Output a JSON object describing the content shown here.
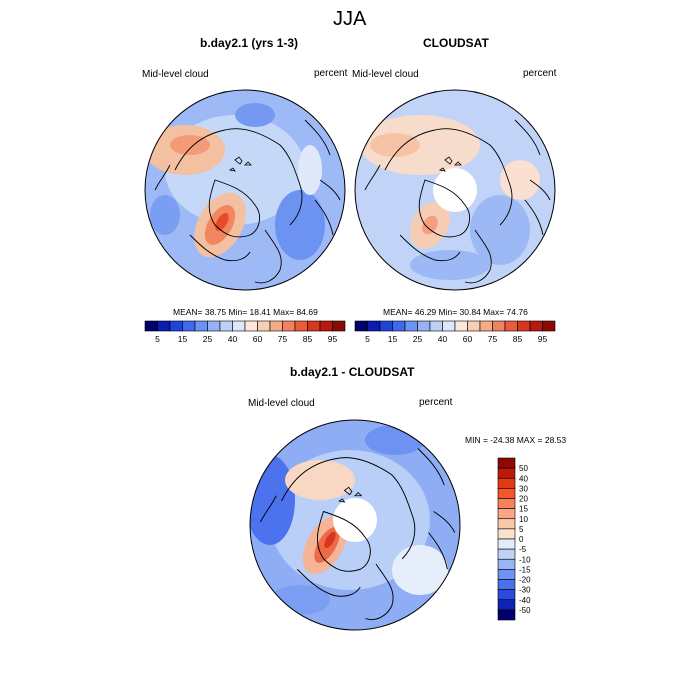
{
  "figure": {
    "season": "JJA"
  },
  "panel_left": {
    "title": "b.day2.1 (yrs 1-3)",
    "variable": "Mid-level cloud",
    "units": "percent",
    "stats": {
      "label": "MEAN=  38.75  Min=  18.41  Max=  84.69",
      "mean": 38.75,
      "min": 18.41,
      "max": 84.69
    }
  },
  "panel_right": {
    "title": "CLOUDSAT",
    "variable": "Mid-level cloud",
    "units": "percent",
    "stats": {
      "label": "MEAN=  46.29  Min=  30.84  Max=  74.76",
      "mean": 46.29,
      "min": 30.84,
      "max": 74.76
    }
  },
  "panel_diff": {
    "title": "b.day2.1 - CLOUDSAT",
    "variable": "Mid-level cloud",
    "units": "percent",
    "minmax": {
      "label": "MIN = -24.38 MAX =  28.53",
      "min": -24.38,
      "max": 28.53
    }
  },
  "colorbar_abs": {
    "tick_labels": [
      "5",
      "15",
      "25",
      "40",
      "60",
      "75",
      "85",
      "95"
    ],
    "colors": [
      "#02006b",
      "#0a1bb0",
      "#1f44d9",
      "#3d6bf0",
      "#6a93f3",
      "#94b2f5",
      "#bdd0f6",
      "#dce8f9",
      "#fbe6d8",
      "#f9cfb4",
      "#f6ab88",
      "#f28262",
      "#ea5a3c",
      "#d9361f",
      "#b81810",
      "#8a0b05"
    ]
  },
  "colorbar_diff": {
    "tick_labels": [
      "50",
      "40",
      "30",
      "20",
      "15",
      "10",
      "5",
      "0",
      "-5",
      "-10",
      "-15",
      "-20",
      "-30",
      "-40",
      "-50"
    ],
    "colors": [
      "#8b0a05",
      "#bb1a0b",
      "#e23814",
      "#f4572a",
      "#f7815b",
      "#f9a684",
      "#fac7aa",
      "#fbe1cd",
      "#e2ecfa",
      "#bfd3f7",
      "#98b6f5",
      "#6f93f2",
      "#4a70ee",
      "#2b4ae0",
      "#0e22b8",
      "#03006d"
    ]
  }
}
